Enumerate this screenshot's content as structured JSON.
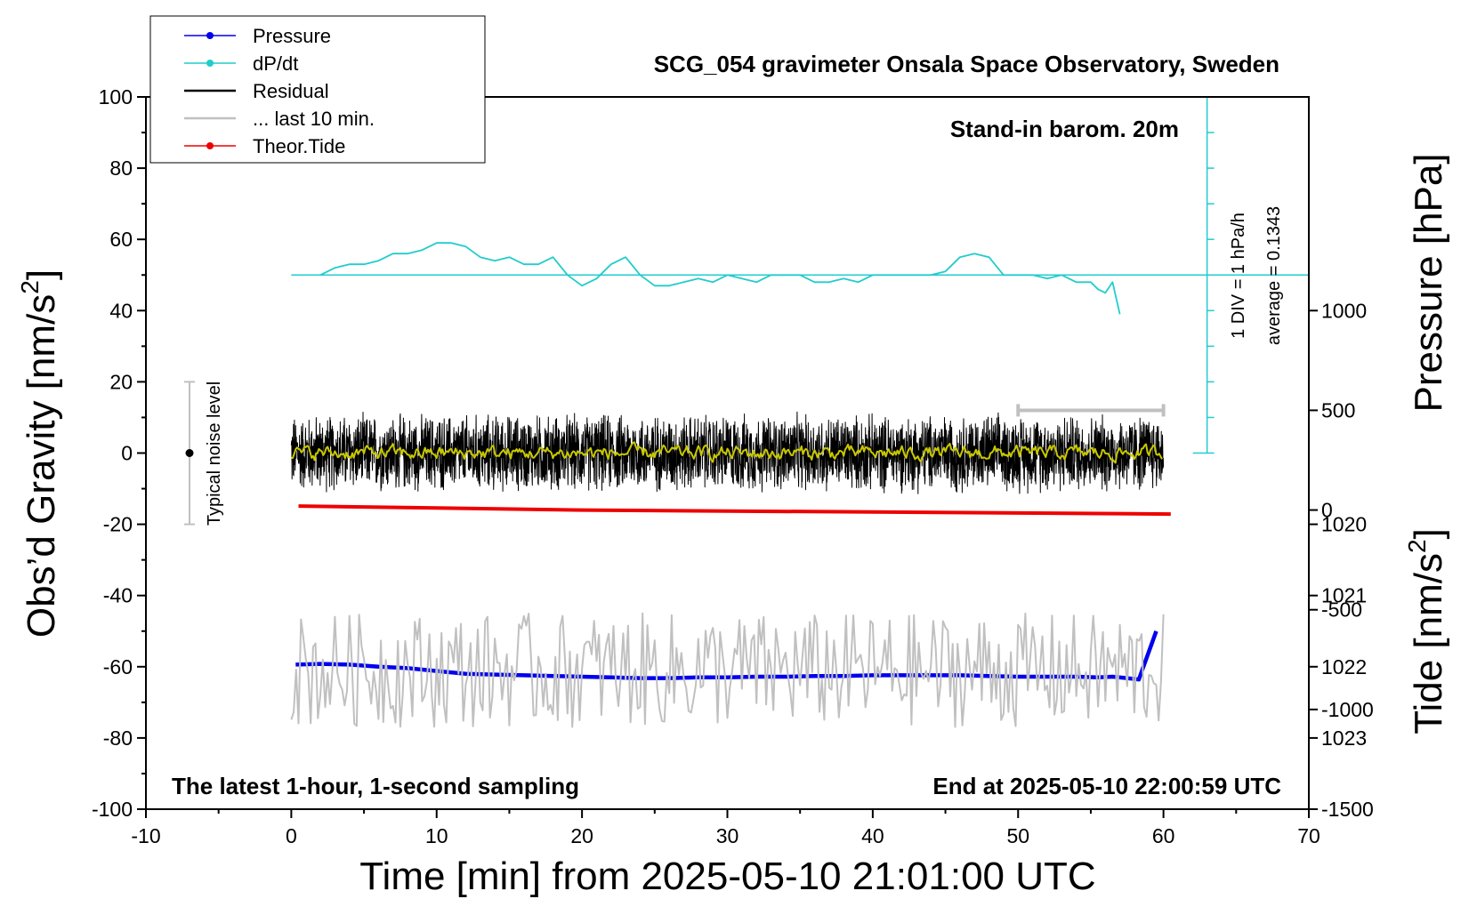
{
  "chart_data": {
    "type": "line",
    "title": "SCG_054 gravimeter Onsala Space Observatory, Sweden",
    "subtitle_right": "Stand-in barom. 20m",
    "xlabel": "Time [min] from 2025-05-10 21:01:00 UTC",
    "ylabel_left": "Obs’d Gravity [nm/s",
    "ylabel_left_sup": "2",
    "ylabel_left_end": "]",
    "ylabel_right_pressure": "Pressure [hPa]",
    "ylabel_right_tide": "Tide [nm/s",
    "ylabel_right_tide_sup": "2",
    "ylabel_right_tide_end": "]",
    "xlim": [
      -10,
      70
    ],
    "ylim": [
      -100,
      100
    ],
    "grid": false,
    "legend_position": "top-left",
    "x_ticks": [
      -10,
      0,
      10,
      20,
      30,
      40,
      50,
      60,
      70
    ],
    "y_ticks": [
      -100,
      -80,
      -60,
      -40,
      -20,
      0,
      20,
      40,
      60,
      80,
      100
    ],
    "pressure_axis": {
      "ticks": [
        1020,
        1021,
        1022,
        1023
      ],
      "range": [
        1019,
        1024
      ]
    },
    "tide_axis": {
      "ticks": [
        -1500,
        -1000,
        -500,
        0,
        500,
        1000
      ],
      "range": [
        -1500,
        1000
      ]
    },
    "legend": [
      {
        "name": "Pressure",
        "color": "#0000ee",
        "marker": true
      },
      {
        "name": "dP/dt",
        "color": "#22cccc",
        "marker": true
      },
      {
        "name": "Residual",
        "color": "#000000",
        "marker": false
      },
      {
        "name": "... last 10 min.",
        "color": "#c0c0c0",
        "marker": false
      },
      {
        "name": "Theor.Tide",
        "color": "#ee0000",
        "marker": true
      }
    ],
    "dpdt_scale": {
      "label": "1 DIV = 1 hPa/h",
      "average_label": "average = 0.1343",
      "x": 63,
      "y_range": [
        0,
        100
      ]
    },
    "noise_bar": {
      "label": "Typical noise level",
      "x": -7,
      "center": 0,
      "range": [
        -20,
        20
      ]
    },
    "last10_bar": {
      "x_range": [
        50,
        60
      ],
      "tide_value": 500
    },
    "bottom_left_note": "The latest 1-hour, 1-second sampling",
    "bottom_right_note": "End at 2025-05-10 22:00:59 UTC",
    "series": [
      {
        "name": "Pressure",
        "axis": "pressure",
        "color": "#0000ee",
        "x": [
          0.3,
          2,
          4,
          6,
          8,
          10,
          12,
          14,
          16,
          18,
          20,
          22,
          24,
          26,
          28,
          30,
          32,
          34,
          36,
          38,
          40,
          42,
          44,
          46,
          48,
          50,
          52,
          54,
          55.5,
          56.5,
          57.5,
          58.3,
          59.5
        ],
        "values": [
          1021.97,
          1021.96,
          1021.97,
          1022.0,
          1022.02,
          1022.06,
          1022.1,
          1022.11,
          1022.12,
          1022.13,
          1022.14,
          1022.15,
          1022.16,
          1022.16,
          1022.15,
          1022.15,
          1022.14,
          1022.14,
          1022.13,
          1022.13,
          1022.12,
          1022.12,
          1022.12,
          1022.12,
          1022.13,
          1022.14,
          1022.14,
          1022.14,
          1022.15,
          1022.14,
          1022.16,
          1022.18,
          1021.5
        ]
      },
      {
        "name": "dP/dt",
        "axis": "gravity",
        "color": "#22cccc",
        "x": [
          2,
          3,
          4,
          5,
          6,
          7,
          8,
          9,
          10,
          11,
          12,
          13,
          14,
          15,
          16,
          17,
          18,
          19,
          20,
          21,
          22,
          23,
          24,
          25,
          26,
          27,
          28,
          29,
          30,
          31,
          32,
          33,
          34,
          35,
          36,
          37,
          38,
          39,
          40,
          41,
          42,
          43,
          44,
          45,
          46,
          47,
          48,
          49,
          50,
          51,
          52,
          53,
          54,
          55,
          55.5,
          56,
          56.5,
          57
        ],
        "values": [
          50,
          52,
          53,
          53,
          54,
          56,
          56,
          57,
          59,
          59,
          58,
          55,
          54,
          55,
          53,
          53,
          55,
          50,
          47,
          49,
          53,
          55,
          50,
          47,
          47,
          48,
          49,
          48,
          50,
          49,
          48,
          50,
          50,
          50,
          48,
          48,
          49,
          48,
          50,
          50,
          50,
          50,
          50,
          51,
          55,
          56,
          55,
          50,
          50,
          50,
          49,
          50,
          48,
          48,
          46,
          45,
          48,
          39
        ]
      },
      {
        "name": "Residual",
        "axis": "gravity",
        "color": "#000000",
        "x_range": [
          0,
          60
        ],
        "center": 0,
        "amplitude": 12
      },
      {
        "name": "Residual (smoothed)",
        "axis": "gravity",
        "color": "#c8c800",
        "x_range": [
          0,
          60
        ],
        "center": 0,
        "amplitude": 1.5
      },
      {
        "name": "... last 10 min.",
        "axis": "gravity",
        "color": "#c0c0c0",
        "x_range": [
          0,
          60
        ],
        "center": -61,
        "amplitude": 16
      },
      {
        "name": "Theor.Tide",
        "axis": "tide",
        "color": "#ee0000",
        "x": [
          0.5,
          10,
          20,
          30,
          40,
          50,
          60.5
        ],
        "values": [
          20,
          10,
          0,
          -5,
          -10,
          -15,
          -20
        ]
      }
    ]
  }
}
